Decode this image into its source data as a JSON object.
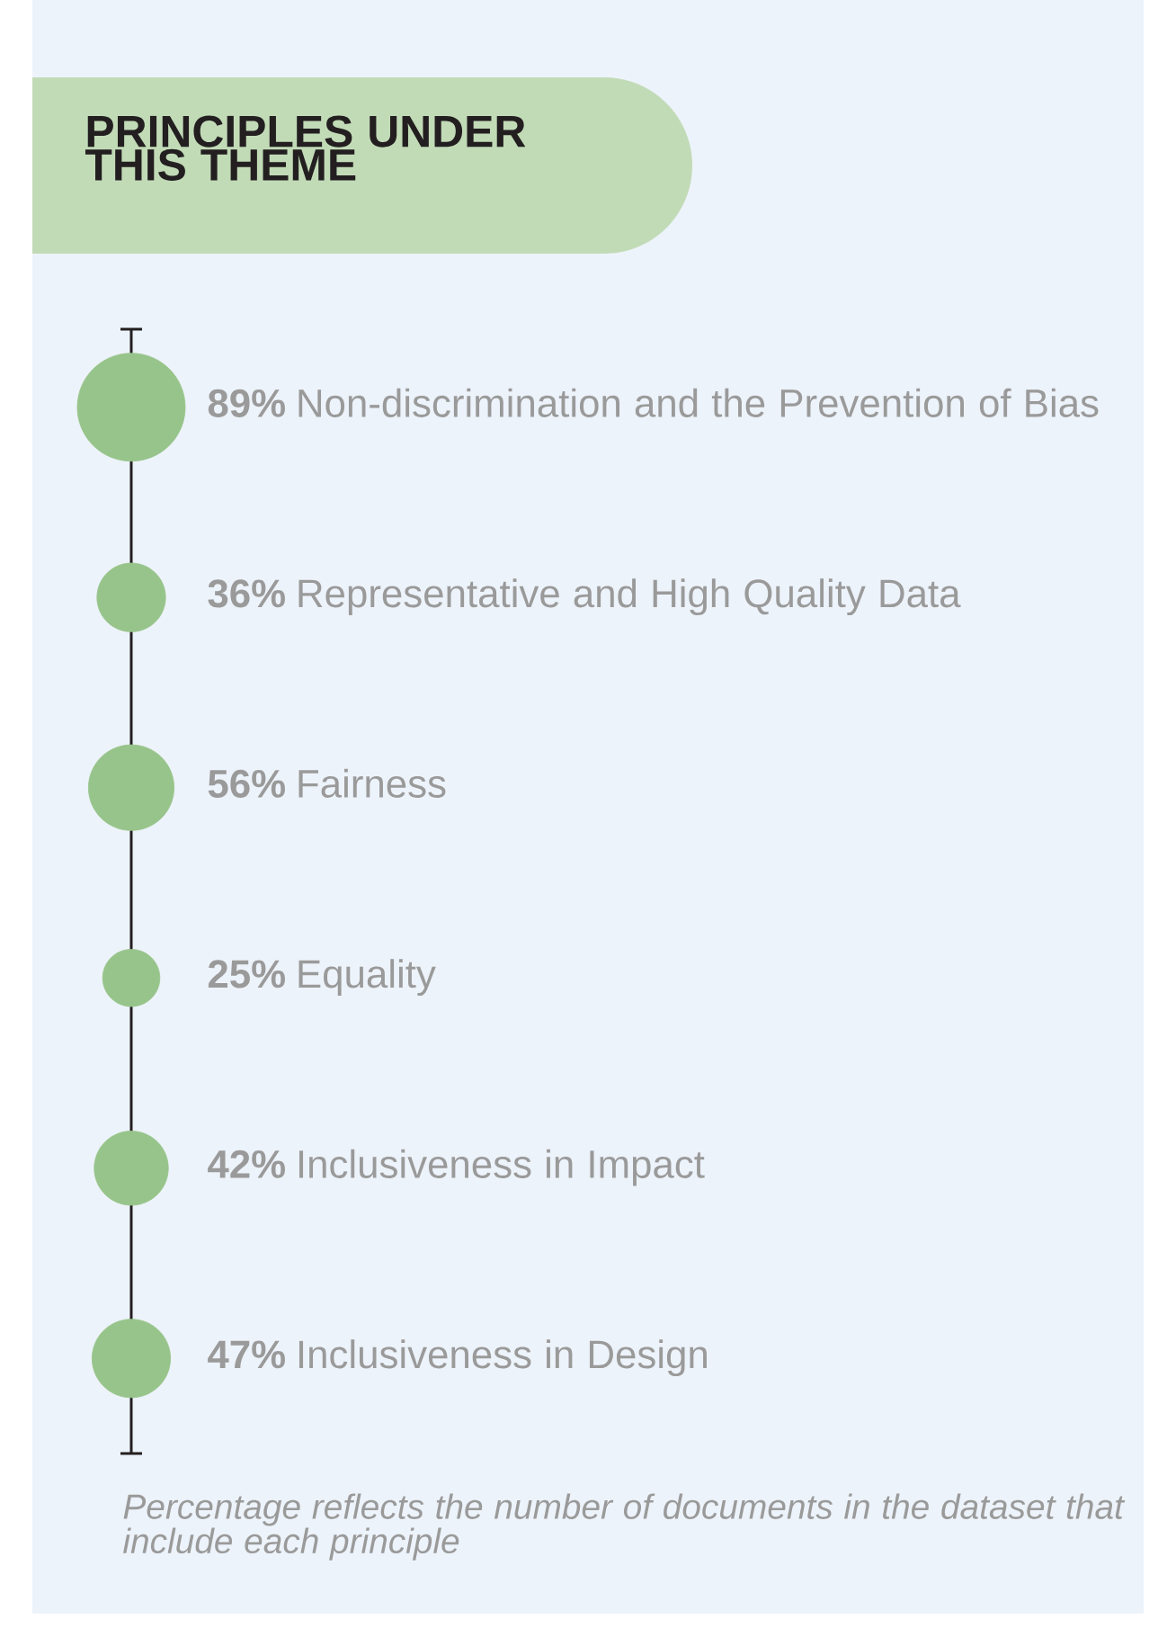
{
  "chart_data": {
    "type": "other",
    "title": "PRINCIPLES UNDER THIS THEME",
    "categories": [
      "Non-discrimination and the Prevention of Bias",
      "Representative and High Quality Data",
      "Fairness",
      "Equality",
      "Inclusiveness in Impact",
      "Inclusiveness in Design"
    ],
    "values": [
      89,
      36,
      56,
      25,
      42,
      47
    ],
    "value_labels": [
      "89%",
      "36%",
      "56%",
      "25%",
      "42%",
      "47%"
    ],
    "color": "#97c48a",
    "annotations": [
      "Percentage reflects the number of documents in the dataset that include each principle"
    ]
  }
}
